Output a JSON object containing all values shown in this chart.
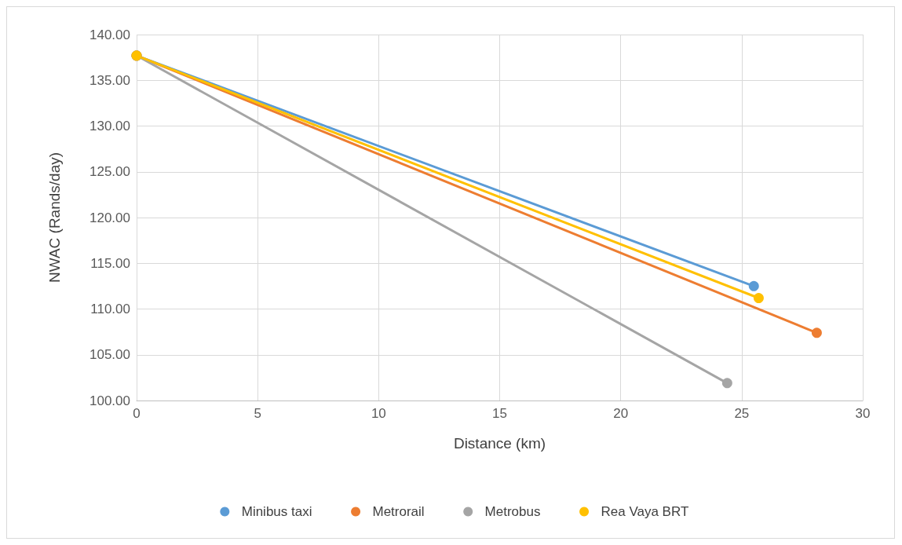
{
  "chart_data": {
    "type": "line",
    "xlabel": "Distance (km)",
    "ylabel": "NWAC (Rands/day)",
    "series": [
      {
        "name": "Minibus taxi",
        "color": "#5b9bd5",
        "x": [
          0,
          25.5
        ],
        "values": [
          137.7,
          112.5
        ]
      },
      {
        "name": "Metrorail",
        "color": "#ed7d31",
        "x": [
          0,
          28.1
        ],
        "values": [
          137.7,
          107.4
        ]
      },
      {
        "name": "Metrobus",
        "color": "#a5a5a5",
        "x": [
          0,
          24.4
        ],
        "values": [
          137.7,
          101.9
        ]
      },
      {
        "name": "Rea Vaya BRT",
        "color": "#ffc000",
        "x": [
          0,
          25.7
        ],
        "values": [
          137.7,
          111.2
        ]
      }
    ],
    "xlim": [
      0,
      30
    ],
    "xticks": [
      0,
      5,
      10,
      15,
      20,
      25,
      30
    ],
    "ylim": [
      100,
      140
    ],
    "yticks": [
      {
        "value": 100,
        "label": "100.00"
      },
      {
        "value": 105,
        "label": "105.00"
      },
      {
        "value": 110,
        "label": "110.00"
      },
      {
        "value": 115,
        "label": "115.00"
      },
      {
        "value": 120,
        "label": "120.00"
      },
      {
        "value": 125,
        "label": "125.00"
      },
      {
        "value": 130,
        "label": "130.00"
      },
      {
        "value": 135,
        "label": "135.00"
      },
      {
        "value": 140,
        "label": "140.00"
      }
    ],
    "grid": true,
    "legend": "bottom",
    "marker": "circle",
    "line_style": "solid"
  }
}
